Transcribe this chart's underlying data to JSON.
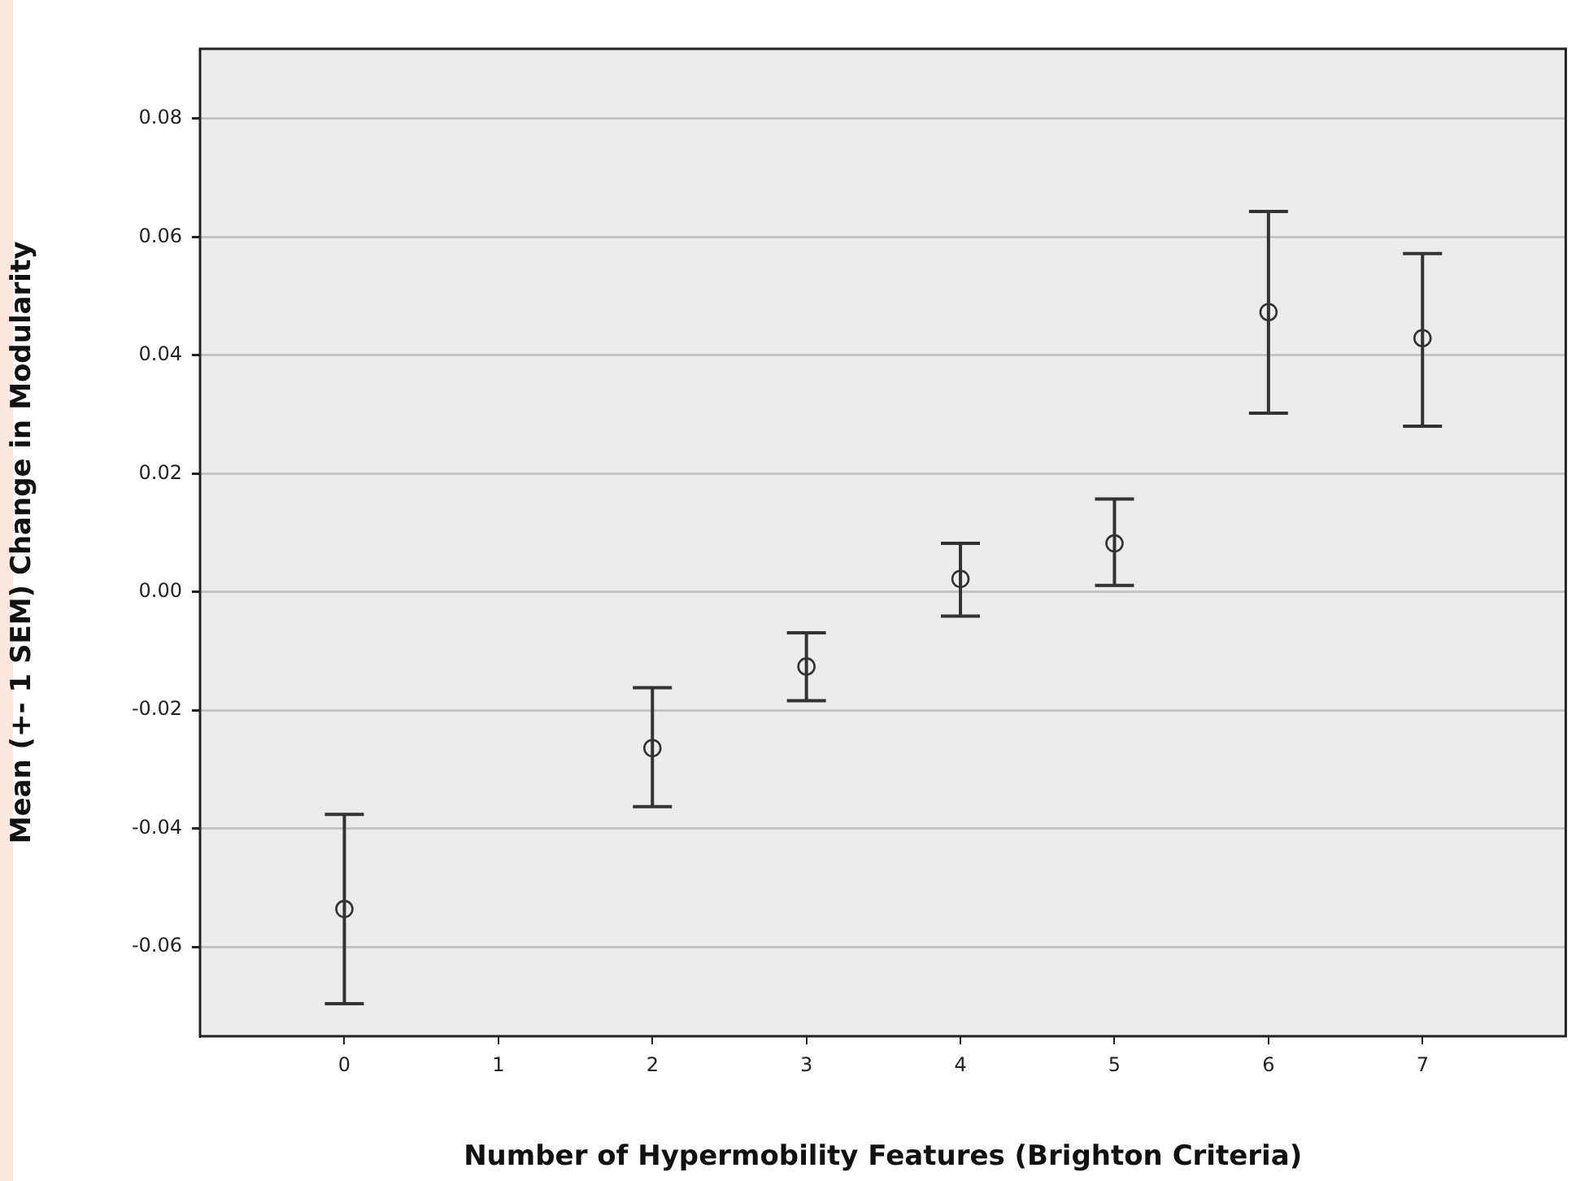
{
  "chart_data": {
    "type": "scatter",
    "xlabel": "Number of Hypermobility Features (Brighton Criteria)",
    "ylabel": "Mean (+- 1 SEM) Change in Modularity",
    "x": [
      0,
      2,
      3,
      4,
      5,
      6,
      7
    ],
    "values": [
      -0.0536,
      -0.0264,
      -0.0126,
      0.0022,
      0.0082,
      0.0473,
      0.0429
    ],
    "errors": [
      [
        -0.0696,
        -0.0376
      ],
      [
        -0.0363,
        -0.0162
      ],
      [
        -0.0184,
        -0.0069
      ],
      [
        -0.0041,
        0.0082
      ],
      [
        0.0011,
        0.0157
      ],
      [
        0.0302,
        0.0643
      ],
      [
        0.028,
        0.0572
      ]
    ],
    "color": "#333333",
    "marker": "circle",
    "xlim": [
      -0.937,
      7.93
    ],
    "xticks": [
      0,
      1,
      2,
      3,
      4,
      5,
      6,
      7
    ],
    "ylim": [
      -0.0751,
      0.0918
    ],
    "yticks": [
      {
        "value": -0.06,
        "label": "-0.06"
      },
      {
        "value": -0.04,
        "label": "-0.04"
      },
      {
        "value": -0.02,
        "label": "-0.02"
      },
      {
        "value": 0,
        "label": "0.00"
      },
      {
        "value": 0.02,
        "label": "0.02"
      },
      {
        "value": 0.04,
        "label": "0.04"
      },
      {
        "value": 0.06,
        "label": "0.06"
      },
      {
        "value": 0.08,
        "label": "0.08"
      }
    ],
    "grid": "y",
    "legend": false
  }
}
